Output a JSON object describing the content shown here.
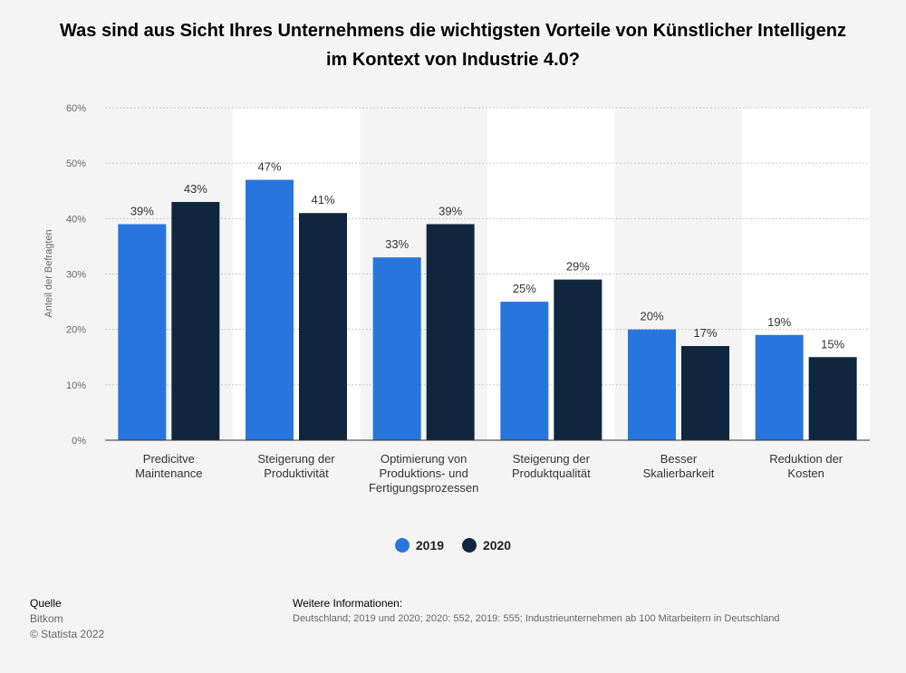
{
  "title": "Was sind aus Sicht Ihres Unternehmens die wichtigsten Vorteile von Künstlicher Intelligenz im Kontext von Industrie 4.0?",
  "chart_data": {
    "type": "bar",
    "ylabel": "Anteil der Befragten",
    "ylim": [
      0,
      60
    ],
    "yticks": [
      "0%",
      "10%",
      "20%",
      "30%",
      "40%",
      "50%",
      "60%"
    ],
    "categories": [
      [
        "Predicitve",
        "Maintenance"
      ],
      [
        "Steigerung der",
        "Produktivität"
      ],
      [
        "Optimierung von",
        "Produktions- und",
        "Fertigungsprozessen"
      ],
      [
        "Steigerung der",
        "Produktqualität"
      ],
      [
        "Besser",
        "Skalierbarkeit"
      ],
      [
        "Reduktion der",
        "Kosten"
      ]
    ],
    "series": [
      {
        "name": "2019",
        "color": "#2876dd",
        "values": [
          39,
          47,
          33,
          25,
          20,
          19
        ],
        "labels": [
          "39%",
          "47%",
          "33%",
          "25%",
          "20%",
          "19%"
        ]
      },
      {
        "name": "2020",
        "color": "#10263f",
        "values": [
          43,
          41,
          39,
          29,
          17,
          15
        ],
        "labels": [
          "43%",
          "41%",
          "39%",
          "29%",
          "17%",
          "15%"
        ]
      }
    ],
    "grid": true,
    "legend": "bottom"
  },
  "footer": {
    "source_heading": "Quelle",
    "source": "Bitkom",
    "copyright": "© Statista 2022",
    "info_heading": "Weitere Informationen:",
    "info": "Deutschland; 2019 und 2020; 2020: 552, 2019: 555; Industrieunternehmen ab 100 Mitarbeitern in Deutschland"
  }
}
